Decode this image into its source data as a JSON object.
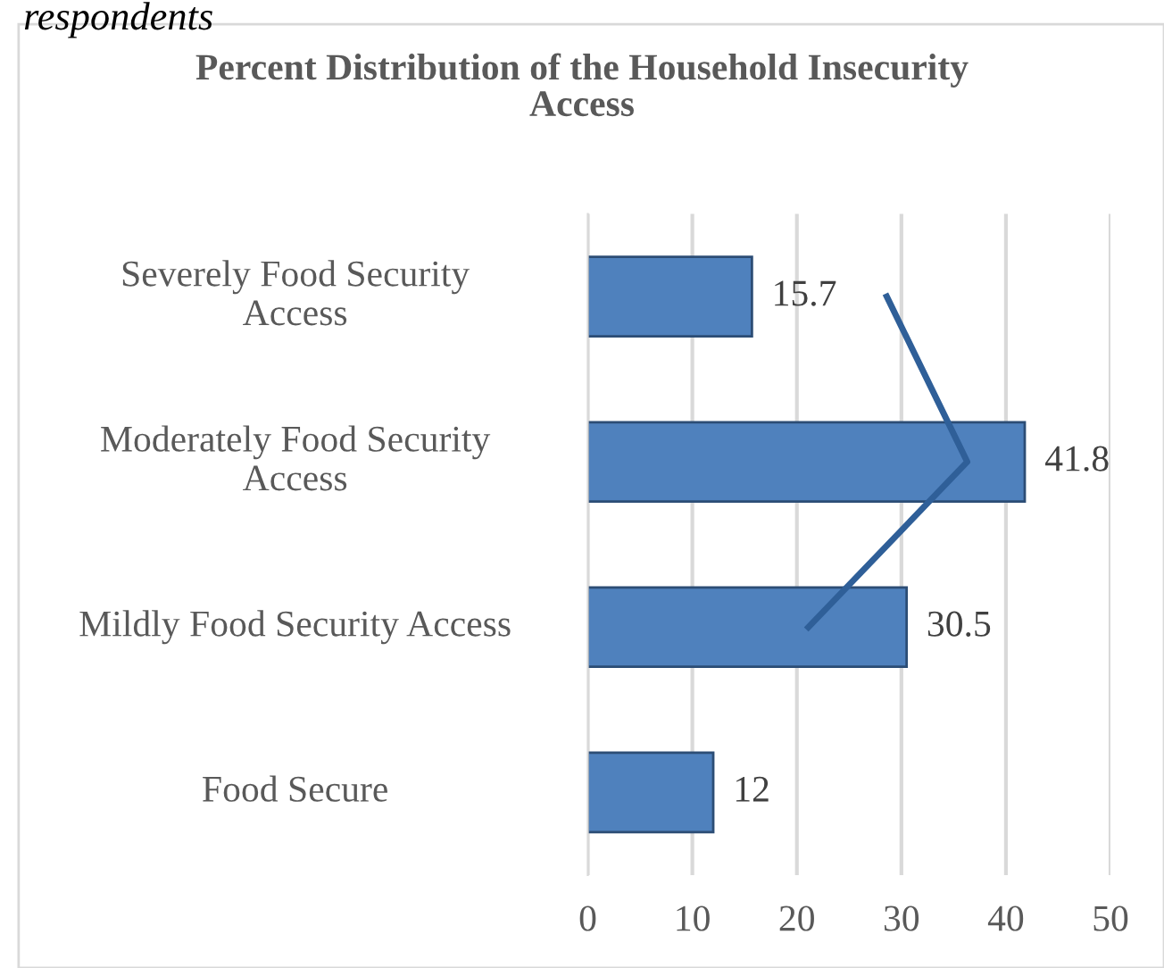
{
  "chart_data": {
    "type": "bar",
    "orientation": "horizontal",
    "title": "Percent Distribution of the Household Insecurity\nAccess",
    "annotations": [
      "respondents"
    ],
    "categories": [
      "Severely Food Security\nAccess",
      "Moderately Food Security\nAccess",
      "Mildly Food Security Access",
      "Food Secure"
    ],
    "series": [
      {
        "color": "#4f81bd",
        "values": [
          15.7,
          41.8,
          30.5,
          12
        ],
        "data_labels": true
      },
      {
        "type": "line",
        "color": "#2f5f98",
        "values": [
          28.6,
          36.3,
          21.1,
          null
        ]
      }
    ],
    "xlim": [
      0,
      50
    ],
    "xticks": [
      0,
      10,
      20,
      30,
      40,
      50
    ],
    "grid": "x",
    "legend": false
  }
}
